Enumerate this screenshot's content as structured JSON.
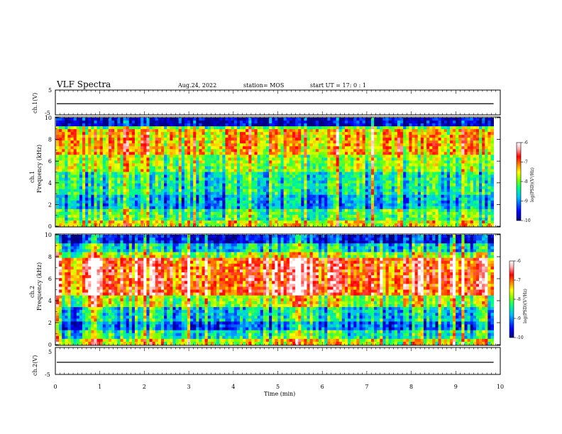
{
  "header": {
    "title": "VLF Spectra",
    "date": "Aug.24, 2022",
    "station": "station= MOS",
    "start": "start  UT =   17: 0  : 1"
  },
  "chart_data": [
    {
      "type": "line",
      "name": "ch1-waveform",
      "ylabel": "ch.1(V)",
      "ylim": [
        -5,
        5
      ],
      "yticks": [
        "5",
        "-5"
      ],
      "level": -0.5
    },
    {
      "type": "heatmap",
      "name": "ch1-spectrogram",
      "ylabel_line1": "ch.1",
      "ylabel_line2": "Frequency (kHz)",
      "ylim": [
        0,
        10
      ],
      "yticks": [
        "0",
        "2",
        "4",
        "6",
        "8",
        "10"
      ],
      "xlim": [
        0,
        10
      ],
      "data_end_min": 9.85,
      "colorbar": {
        "label": "log(PSD)(V²/Hz)",
        "range": [
          -10,
          -6
        ],
        "ticks": [
          "-6",
          "-7",
          "-8",
          "-9",
          "-10"
        ],
        "colors": [
          "#000080",
          "#0000ff",
          "#00c0ff",
          "#00ff80",
          "#80ff00",
          "#ffff00",
          "#ff8000",
          "#ff0000",
          "#ffb0b0",
          "#ffffff"
        ]
      }
    },
    {
      "type": "heatmap",
      "name": "ch2-spectrogram",
      "ylabel_line1": "ch.2",
      "ylabel_line2": "Frequency (kHz)",
      "ylim": [
        0,
        10
      ],
      "yticks": [
        "0",
        "2",
        "4",
        "6",
        "8",
        "10"
      ],
      "xlim": [
        0,
        10
      ],
      "data_end_min": 9.85,
      "colorbar": {
        "label": "log(PSD)(V²/Hz)",
        "range": [
          -10,
          -6
        ],
        "ticks": [
          "-6",
          "-7",
          "-8",
          "-9",
          "-10"
        ],
        "colors": [
          "#000080",
          "#0000ff",
          "#00c0ff",
          "#00ff80",
          "#80ff00",
          "#ffff00",
          "#ff8000",
          "#ff0000",
          "#ffb0b0",
          "#ffffff"
        ]
      }
    },
    {
      "type": "line",
      "name": "ch2-waveform",
      "ylabel": "ch.2(V)",
      "ylim": [
        -5,
        5
      ],
      "yticks": [
        "5",
        "-5"
      ],
      "level": -0.5
    }
  ],
  "xaxis": {
    "label": "Time  (min)",
    "range": [
      0,
      10
    ],
    "ticks": [
      "0",
      "1",
      "2",
      "3",
      "4",
      "5",
      "6",
      "7",
      "8",
      "9",
      "10"
    ]
  }
}
